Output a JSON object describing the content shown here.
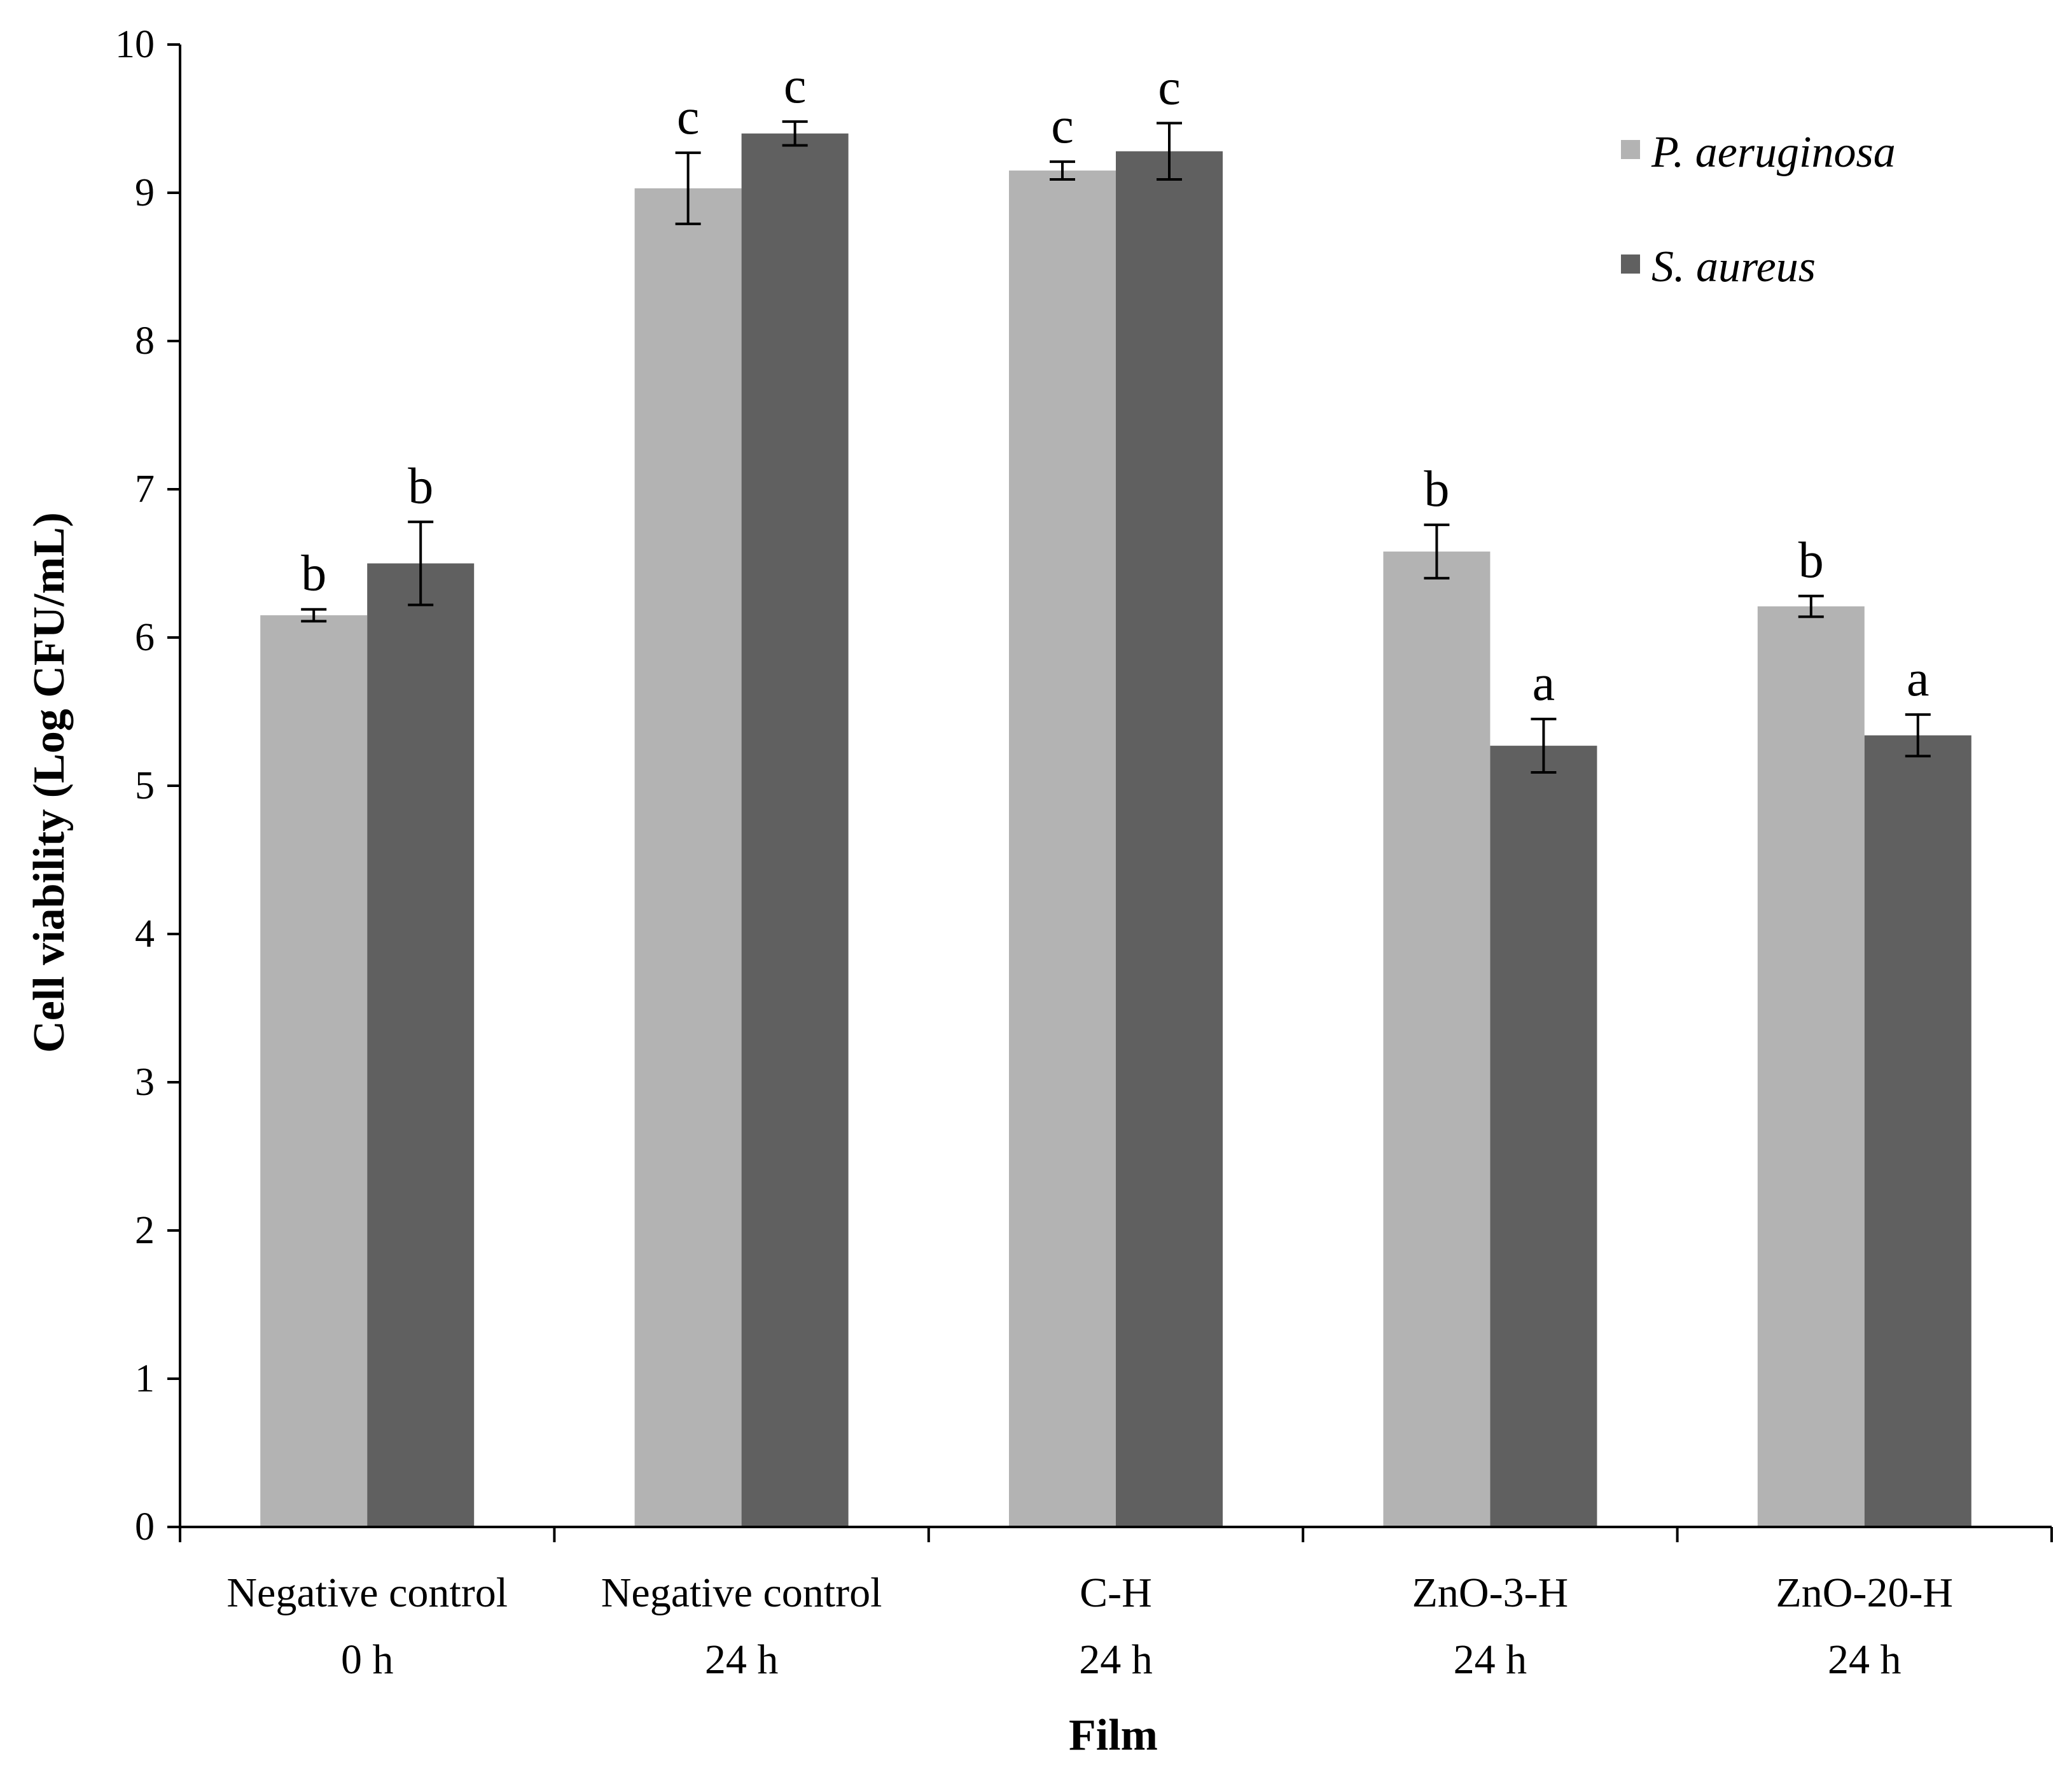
{
  "chart_data": {
    "type": "bar",
    "title": "",
    "xlabel": "Film",
    "ylabel": "Cell viability (Log CFU/mL)",
    "ylim": [
      0,
      10
    ],
    "yticks": [
      0,
      1,
      2,
      3,
      4,
      5,
      6,
      7,
      8,
      9,
      10
    ],
    "grid": false,
    "legend_position": "top-right",
    "categories": [
      [
        "Negative control",
        "0 h"
      ],
      [
        "Negative control",
        "24 h"
      ],
      [
        "C-H",
        "24 h"
      ],
      [
        "ZnO-3-H",
        "24 h"
      ],
      [
        "ZnO-20-H",
        "24 h"
      ]
    ],
    "series": [
      {
        "name": "P. aeruginosa",
        "color": "#b3b3b3",
        "values": [
          6.15,
          9.03,
          9.15,
          6.58,
          6.21
        ],
        "errors": [
          0.04,
          0.24,
          0.06,
          0.18,
          0.07
        ],
        "significance": [
          "b",
          "c",
          "c",
          "b",
          "b"
        ]
      },
      {
        "name": "S. aureus",
        "color": "#606060",
        "values": [
          6.5,
          9.4,
          9.28,
          5.27,
          5.34
        ],
        "errors": [
          0.28,
          0.08,
          0.19,
          0.18,
          0.14
        ],
        "significance": [
          "b",
          "c",
          "c",
          "a",
          "a"
        ]
      }
    ]
  }
}
